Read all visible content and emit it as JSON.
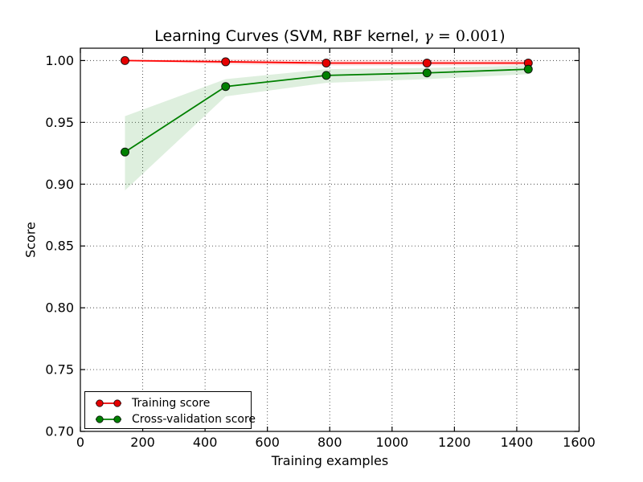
{
  "figure": {
    "background": "#ffffff",
    "title": {
      "prefix": "Learning Curves (SVM, RBF kernel, ",
      "gamma": "γ",
      "equation": " = 0.001",
      "suffix": ")"
    },
    "xlabel": "Training examples",
    "ylabel": "Score"
  },
  "axes": {
    "frame_color": "#000000",
    "grid_style": "dotted",
    "xtick_labels": [
      "0",
      "200",
      "400",
      "600",
      "800",
      "1000",
      "1200",
      "1400",
      "1600"
    ],
    "ytick_labels": [
      "0.70",
      "0.75",
      "0.80",
      "0.85",
      "0.90",
      "0.95",
      "1.00"
    ]
  },
  "legend": {
    "position": "lower left",
    "items": [
      {
        "label": "Training score",
        "color": "#e60000"
      },
      {
        "label": "Cross-validation score",
        "color": "#008000"
      }
    ]
  },
  "chart_data": {
    "type": "line",
    "title": "Learning Curves (SVM, RBF kernel, γ = 0.001)",
    "xlabel": "Training examples",
    "ylabel": "Score",
    "xlim": [
      0,
      1600
    ],
    "ylim": [
      0.7,
      1.01
    ],
    "xticks": [
      0,
      200,
      400,
      600,
      800,
      1000,
      1200,
      1400,
      1600
    ],
    "yticks": [
      0.7,
      0.75,
      0.8,
      0.85,
      0.9,
      0.95,
      1.0
    ],
    "grid": true,
    "legend_position": "lower left",
    "x": [
      143,
      466,
      789,
      1112,
      1437
    ],
    "series": [
      {
        "name": "Training score",
        "color": "#e60000",
        "line_color": "#ff0000",
        "values": [
          1.0,
          0.999,
          0.998,
          0.998,
          0.998
        ],
        "band_upper": [
          1.0005,
          1.001,
          1.0005,
          1.0005,
          1.0005
        ],
        "band_lower": [
          0.9995,
          0.997,
          0.996,
          0.996,
          0.996
        ]
      },
      {
        "name": "Cross-validation score",
        "color": "#008000",
        "line_color": "#008000",
        "values": [
          0.926,
          0.979,
          0.988,
          0.99,
          0.993
        ],
        "band_upper": [
          0.955,
          0.985,
          0.993,
          0.994,
          0.996
        ],
        "band_lower": [
          0.895,
          0.971,
          0.982,
          0.985,
          0.989
        ]
      }
    ]
  }
}
